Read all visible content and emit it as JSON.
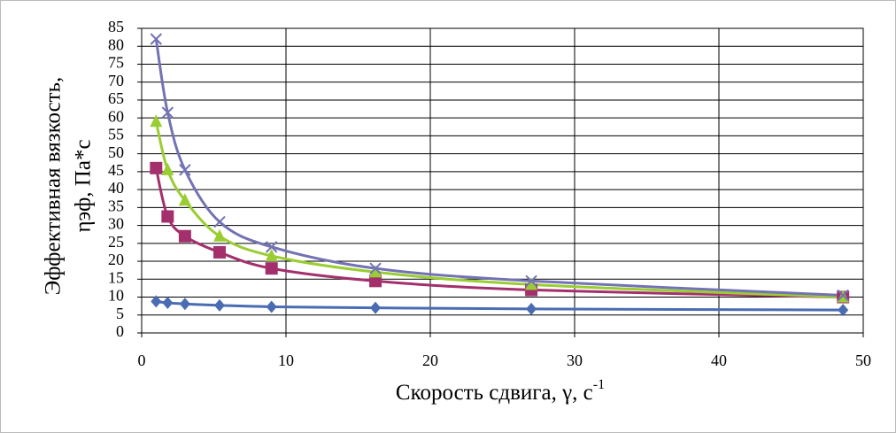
{
  "chart_data": {
    "type": "scatter_smooth",
    "x_label": "Скорость сдвига, γ, с",
    "x_label_superscript": "-1",
    "y_label_lines": [
      "Эффективная вязкость,",
      "ηэф, Па*с"
    ],
    "x": [
      1,
      1.8,
      3,
      5.4,
      9,
      16.2,
      27,
      48.6
    ],
    "series": [
      {
        "color": "#4a6cb3",
        "marker": "diamond",
        "values": [
          8.8,
          8.4,
          8.1,
          7.7,
          7.3,
          7.0,
          6.7,
          6.4
        ]
      },
      {
        "color": "#a3306c",
        "marker": "square",
        "values": [
          46,
          32.5,
          27,
          22.5,
          18,
          14.5,
          12,
          10
        ]
      },
      {
        "color": "#9acd32",
        "marker": "triangle",
        "values": [
          59,
          45.5,
          37,
          27,
          21.5,
          17,
          13.5,
          10
        ]
      },
      {
        "color": "#7272b4",
        "marker": "x",
        "values": [
          82,
          61.5,
          45.5,
          31,
          24,
          18,
          14.5,
          10.5
        ]
      }
    ],
    "xlim": [
      0,
      50
    ],
    "xticks": [
      0,
      10,
      20,
      30,
      40,
      50
    ],
    "ylim": [
      0,
      85
    ],
    "yticks": [
      0,
      5,
      10,
      15,
      20,
      25,
      30,
      35,
      40,
      45,
      50,
      55,
      60,
      65,
      70,
      75,
      80,
      85
    ],
    "grid": true
  }
}
